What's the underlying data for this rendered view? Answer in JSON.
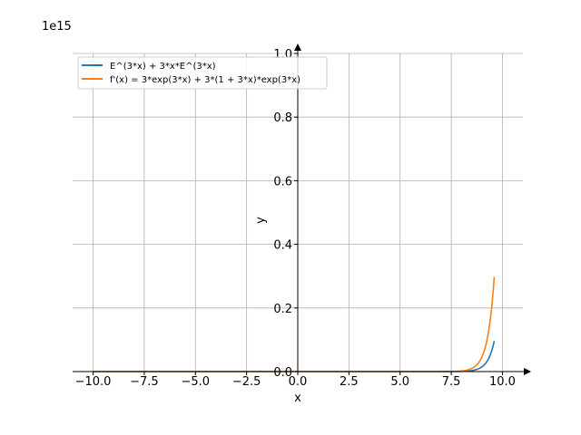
{
  "chart_data": {
    "type": "line",
    "xlabel": "x",
    "ylabel": "y",
    "y_offset_label": "1e15",
    "xlim": [
      -11.0,
      11.0
    ],
    "ylim": [
      0.0,
      1.0
    ],
    "y_scale_factor": 1000000000000000.0,
    "x_ticks": [
      -10.0,
      -7.5,
      -5.0,
      -2.5,
      0.0,
      2.5,
      5.0,
      7.5,
      10.0
    ],
    "x_tick_labels": [
      "−10.0",
      "−7.5",
      "−5.0",
      "−2.5",
      "0.0",
      "2.5",
      "5.0",
      "7.5",
      "10.0"
    ],
    "y_ticks": [
      0.0,
      0.2,
      0.4,
      0.6,
      0.8,
      1.0
    ],
    "y_tick_labels": [
      "0.0",
      "0.2",
      "0.4",
      "0.6",
      "0.8",
      "1.0"
    ],
    "grid": true,
    "legend_position": "top-left",
    "series": [
      {
        "name": "E^(3*x) + 3*x*E^(3*x)",
        "color": "#1f77b4",
        "function": "f",
        "x_range": [
          -10.0,
          9.6
        ]
      },
      {
        "name": "f'(x) = 3*exp(3*x) + 3*(1 + 3*x)*exp(3*x)",
        "color": "#ff7f0e",
        "function": "fprime",
        "x_range": [
          -10.0,
          9.6
        ]
      }
    ]
  }
}
